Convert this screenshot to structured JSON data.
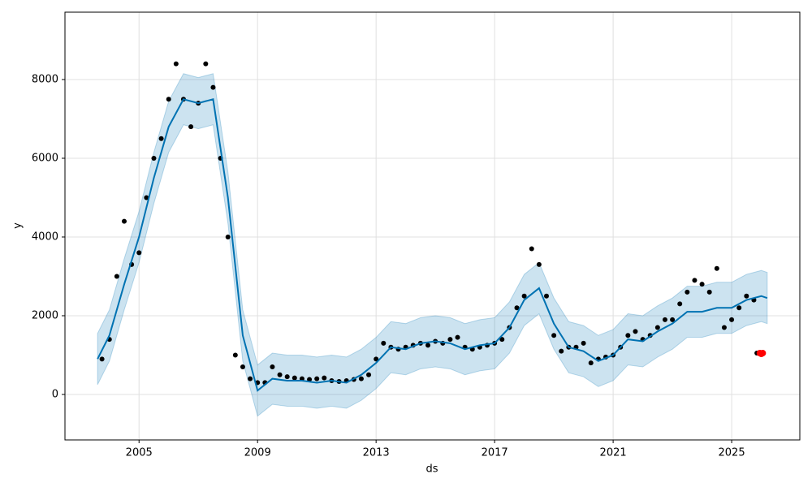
{
  "chart_data": {
    "type": "forecast",
    "xlabel": "ds",
    "ylabel": "y",
    "xlim": [
      2002.5,
      2027.3
    ],
    "ylim": [
      -1155,
      9711
    ],
    "xticks": [
      2005,
      2009,
      2013,
      2017,
      2021,
      2025
    ],
    "yticks": [
      0,
      2000,
      4000,
      6000,
      8000
    ],
    "grid": true,
    "actual": {
      "color": "#000000",
      "x": [
        2003.75,
        2004,
        2004.25,
        2004.5,
        2004.75,
        2005,
        2005.25,
        2005.5,
        2005.75,
        2006,
        2006.25,
        2006.5,
        2006.75,
        2007,
        2007.25,
        2007.5,
        2007.75,
        2008,
        2008.25,
        2008.5,
        2008.75,
        2009,
        2009.25,
        2009.5,
        2009.75,
        2010,
        2010.25,
        2010.5,
        2010.75,
        2011,
        2011.25,
        2011.5,
        2011.75,
        2012,
        2012.25,
        2012.5,
        2012.75,
        2013,
        2013.25,
        2013.5,
        2013.75,
        2014,
        2014.25,
        2014.5,
        2014.75,
        2015,
        2015.25,
        2015.5,
        2015.75,
        2016,
        2016.25,
        2016.5,
        2016.75,
        2017,
        2017.25,
        2017.5,
        2017.75,
        2018,
        2018.25,
        2018.5,
        2018.75,
        2019,
        2019.25,
        2019.5,
        2019.75,
        2020,
        2020.25,
        2020.5,
        2020.75,
        2021,
        2021.25,
        2021.5,
        2021.75,
        2022,
        2022.25,
        2022.5,
        2022.75,
        2023,
        2023.25,
        2023.5,
        2023.75,
        2024,
        2024.25,
        2024.5,
        2024.75,
        2025,
        2025.25,
        2025.5,
        2025.75,
        2025.85
      ],
      "values": [
        900,
        1400,
        3000,
        4400,
        3300,
        3600,
        5000,
        6000,
        6500,
        7500,
        8400,
        7500,
        6800,
        7400,
        8400,
        7800,
        6000,
        4000,
        1000,
        700,
        400,
        300,
        300,
        700,
        500,
        450,
        420,
        400,
        380,
        400,
        420,
        350,
        330,
        350,
        380,
        400,
        500,
        900,
        1300,
        1200,
        1150,
        1200,
        1250,
        1300,
        1250,
        1350,
        1300,
        1400,
        1450,
        1200,
        1150,
        1200,
        1250,
        1300,
        1400,
        1700,
        2200,
        2500,
        3700,
        3300,
        2500,
        1500,
        1100,
        1200,
        1200,
        1300,
        800,
        900,
        950,
        1000,
        1200,
        1500,
        1600,
        1400,
        1500,
        1700,
        1900,
        1900,
        2300,
        2600,
        2900,
        2800,
        2600,
        3200,
        1700,
        1900,
        2200,
        2500,
        2400,
        1050
      ]
    },
    "forecast": {
      "color": "#0072B2",
      "band_color": "#0072B2",
      "x": [
        2003.6,
        2004,
        2004.5,
        2005,
        2005.5,
        2006,
        2006.5,
        2007,
        2007.5,
        2008,
        2008.5,
        2009,
        2009.5,
        2010,
        2010.5,
        2011,
        2011.5,
        2012,
        2012.5,
        2013,
        2013.5,
        2014,
        2014.5,
        2015,
        2015.5,
        2016,
        2016.5,
        2017,
        2017.5,
        2018,
        2018.5,
        2019,
        2019.5,
        2020,
        2020.5,
        2021,
        2021.5,
        2022,
        2022.5,
        2023,
        2023.5,
        2024,
        2024.5,
        2025,
        2025.5,
        2026,
        2026.2
      ],
      "values": [
        900,
        1500,
        2800,
        4000,
        5500,
        6800,
        7500,
        7400,
        7500,
        5000,
        1500,
        100,
        400,
        350,
        350,
        300,
        350,
        300,
        500,
        800,
        1200,
        1150,
        1300,
        1350,
        1300,
        1150,
        1250,
        1300,
        1700,
        2400,
        2700,
        1800,
        1200,
        1100,
        850,
        1000,
        1400,
        1350,
        1600,
        1800,
        2100,
        2100,
        2200,
        2200,
        2400,
        2500,
        2450
      ],
      "lower": [
        250,
        850,
        2150,
        3350,
        4850,
        6150,
        6850,
        6750,
        6850,
        4350,
        850,
        -550,
        -250,
        -300,
        -300,
        -350,
        -300,
        -350,
        -150,
        150,
        550,
        500,
        650,
        700,
        650,
        500,
        600,
        650,
        1050,
        1750,
        2050,
        1150,
        550,
        450,
        200,
        350,
        750,
        700,
        950,
        1150,
        1450,
        1450,
        1550,
        1550,
        1750,
        1850,
        1800
      ],
      "upper": [
        1550,
        2150,
        3450,
        4650,
        6150,
        7450,
        8150,
        8050,
        8150,
        5650,
        2150,
        750,
        1050,
        1000,
        1000,
        950,
        1000,
        950,
        1150,
        1450,
        1850,
        1800,
        1950,
        2000,
        1950,
        1800,
        1900,
        1950,
        2350,
        3050,
        3350,
        2450,
        1850,
        1750,
        1500,
        1650,
        2050,
        2000,
        2250,
        2450,
        2750,
        2750,
        2850,
        2850,
        3050,
        3150,
        3100
      ]
    },
    "new_points": {
      "color": "#ff0000",
      "x": [
        2025.95,
        2026.0,
        2026.05
      ],
      "values": [
        1050,
        1030,
        1050
      ]
    }
  }
}
